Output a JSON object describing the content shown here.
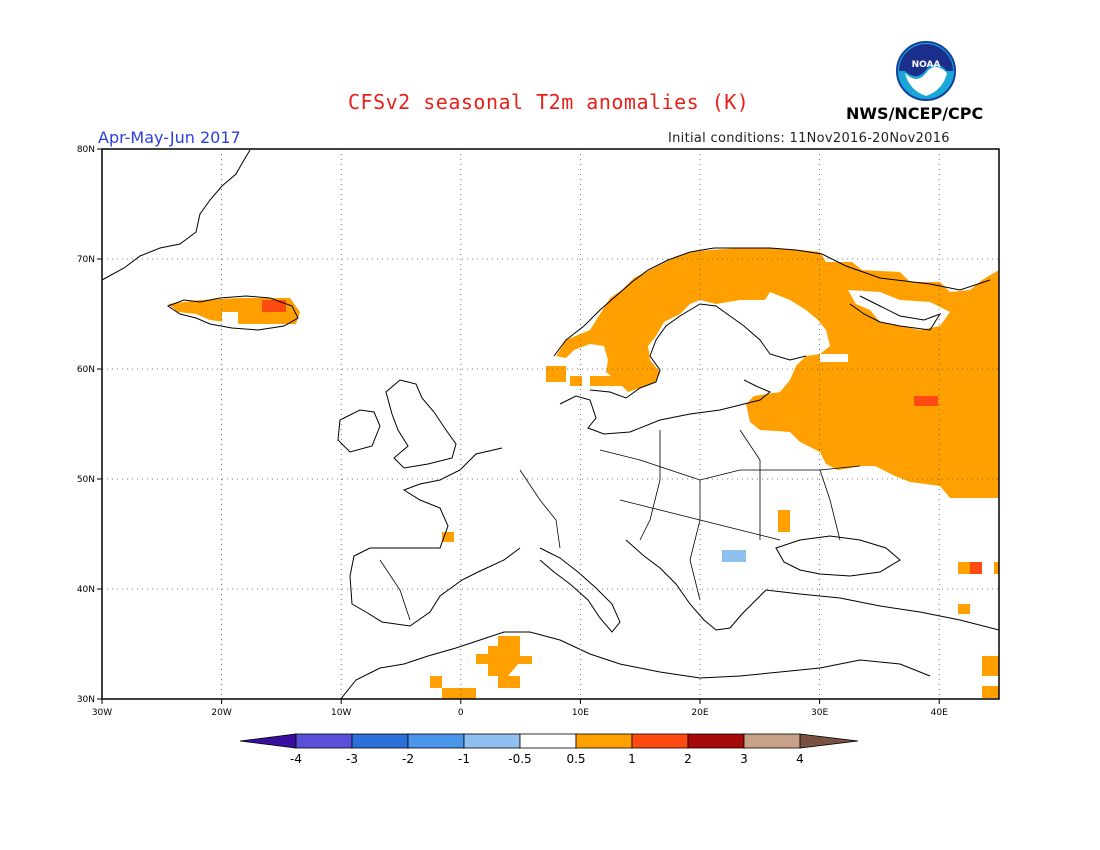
{
  "header": {
    "title": "CFSv2 seasonal T2m anomalies (K)",
    "period": "Apr-May-Jun 2017",
    "initial_conditions": "Initial conditions: 11Nov2016-20Nov2016",
    "agency": "NWS/NCEP/CPC",
    "logo_text": "NOAA"
  },
  "colors": {
    "title": "#e8201a",
    "period": "#2b3fe0",
    "bins": [
      "#3a0f9e",
      "#5a4fd8",
      "#2b6fd8",
      "#4a96ea",
      "#8fc0f0",
      "#ffffff",
      "#ffa000",
      "#ff4a12",
      "#a80a0a",
      "#c9a08a",
      "#7a5040"
    ],
    "anomaly_0_5_to_1": "#ffa000",
    "anomaly_1_to_2": "#ff4a12",
    "anomaly_neg_1_to_neg_0_5": "#8fc0f0"
  },
  "map": {
    "lon_range": [
      -30,
      45
    ],
    "lat_range": [
      30,
      80
    ],
    "lon_ticks": [
      "30W",
      "20W",
      "10W",
      "0",
      "10E",
      "20E",
      "30E",
      "40E"
    ],
    "lat_ticks": [
      "30N",
      "40N",
      "50N",
      "60N",
      "70N",
      "80N"
    ],
    "grid": "dotted"
  },
  "colorbar": {
    "labels": [
      "-4",
      "-3",
      "-2",
      "-1",
      "-0.5",
      "0.5",
      "1",
      "2",
      "3",
      "4"
    ]
  }
}
